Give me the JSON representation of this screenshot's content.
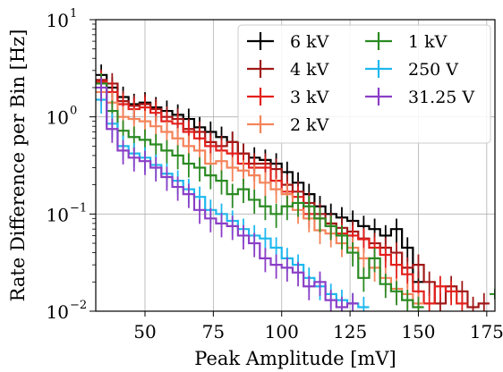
{
  "chart_data": {
    "type": "line",
    "title": "",
    "xlabel": "Peak Amplitude [mV]",
    "ylabel": "Rate Difference per Bin [Hz]",
    "xlim": [
      32,
      178
    ],
    "ylim": [
      0.01,
      10
    ],
    "yscale": "log",
    "grid": true,
    "legend_position": "top-right",
    "legend_columns": 2,
    "x_ticks": [
      50,
      75,
      100,
      125,
      150,
      175
    ],
    "x_tick_labels": [
      "50",
      "75",
      "100",
      "125",
      "150",
      "175"
    ],
    "y_ticks": [
      0.01,
      0.1,
      1,
      10
    ],
    "y_tick_labels": [
      {
        "base": "10",
        "exp": "−2"
      },
      {
        "base": "10",
        "exp": "−1"
      },
      {
        "base": "10",
        "exp": "0"
      },
      {
        "base": "10",
        "exp": "1"
      }
    ],
    "bin_width": 4,
    "bin_start": 32,
    "series": [
      {
        "name": "6 kV",
        "color": "#000000",
        "values": [
          2.7,
          2.0,
          1.6,
          1.35,
          1.4,
          1.25,
          1.15,
          1.05,
          0.95,
          0.78,
          0.7,
          0.62,
          0.55,
          0.42,
          0.38,
          0.36,
          0.33,
          0.27,
          0.21,
          0.16,
          0.12,
          0.1,
          0.092,
          0.085,
          0.075,
          0.07,
          0.06,
          0.07,
          0.045,
          0.02,
          null,
          null,
          null,
          null,
          null,
          null,
          null
        ]
      },
      {
        "name": "4 kV",
        "color": "#a01818",
        "values": [
          2.4,
          2.2,
          1.45,
          1.3,
          1.35,
          1.2,
          1.0,
          0.95,
          0.75,
          0.7,
          0.55,
          0.5,
          0.55,
          0.42,
          0.33,
          0.33,
          0.29,
          0.2,
          0.17,
          0.13,
          0.1,
          0.08,
          0.072,
          0.066,
          0.056,
          0.05,
          0.045,
          0.04,
          0.028,
          0.03,
          0.02,
          0.012,
          0.018,
          0.016,
          0.011,
          0.012,
          null
        ]
      },
      {
        "name": "3 kV",
        "color": "#e3201c",
        "values": [
          2.3,
          1.8,
          1.35,
          1.2,
          1.25,
          1.1,
          0.9,
          0.85,
          0.7,
          0.6,
          0.5,
          0.45,
          0.42,
          0.33,
          0.3,
          0.3,
          0.22,
          0.17,
          0.15,
          0.1,
          0.09,
          0.075,
          0.063,
          0.06,
          0.055,
          0.045,
          0.038,
          0.03,
          0.024,
          0.016,
          0.012,
          0.018,
          0.016,
          0.012,
          null,
          null,
          null
        ]
      },
      {
        "name": "2 kV",
        "color": "#f4845a",
        "values": [
          1.8,
          1.4,
          1.0,
          0.95,
          0.9,
          0.8,
          0.7,
          0.6,
          0.5,
          0.45,
          0.33,
          0.35,
          0.3,
          0.28,
          0.25,
          0.21,
          0.18,
          0.16,
          0.11,
          0.09,
          0.068,
          0.063,
          0.05,
          0.045,
          0.035,
          0.028,
          0.022,
          0.017,
          0.015,
          0.012,
          null,
          null,
          null,
          null,
          null,
          null,
          null
        ]
      },
      {
        "name": "1 kV",
        "color": "#2a8a22",
        "values": [
          2.2,
          1.15,
          0.72,
          0.62,
          0.58,
          0.52,
          0.45,
          0.4,
          0.33,
          0.3,
          0.25,
          0.22,
          0.16,
          0.18,
          0.14,
          0.12,
          0.1,
          0.12,
          0.13,
          0.12,
          0.09,
          0.075,
          0.06,
          0.04,
          0.022,
          0.035,
          0.019,
          0.016,
          0.013,
          0.011,
          null,
          null,
          null,
          null,
          null,
          null,
          null
        ]
      },
      {
        "name": "250 V",
        "color": "#1fb8ee",
        "values": [
          1.5,
          0.85,
          0.5,
          0.42,
          0.38,
          0.32,
          0.26,
          0.22,
          0.18,
          0.15,
          0.11,
          0.1,
          0.085,
          0.07,
          0.06,
          0.056,
          0.045,
          0.035,
          0.03,
          0.022,
          0.018,
          0.015,
          0.013,
          0.012,
          0.011,
          null,
          null,
          null,
          null,
          null,
          null,
          null,
          null,
          null,
          null,
          null,
          null
        ]
      },
      {
        "name": "31.25 V",
        "color": "#8b3ec7",
        "values": [
          2.0,
          0.75,
          0.45,
          0.38,
          0.35,
          0.3,
          0.24,
          0.19,
          0.16,
          0.11,
          0.09,
          0.08,
          0.075,
          0.06,
          0.05,
          0.035,
          0.03,
          0.028,
          0.025,
          0.018,
          0.02,
          0.013,
          0.011,
          0.012,
          null,
          null,
          null,
          null,
          null,
          null,
          null,
          null,
          null,
          null,
          null,
          null,
          null
        ]
      }
    ],
    "stray_points": [
      {
        "series": "1 kV",
        "x": 178,
        "y": 0.015
      }
    ]
  }
}
